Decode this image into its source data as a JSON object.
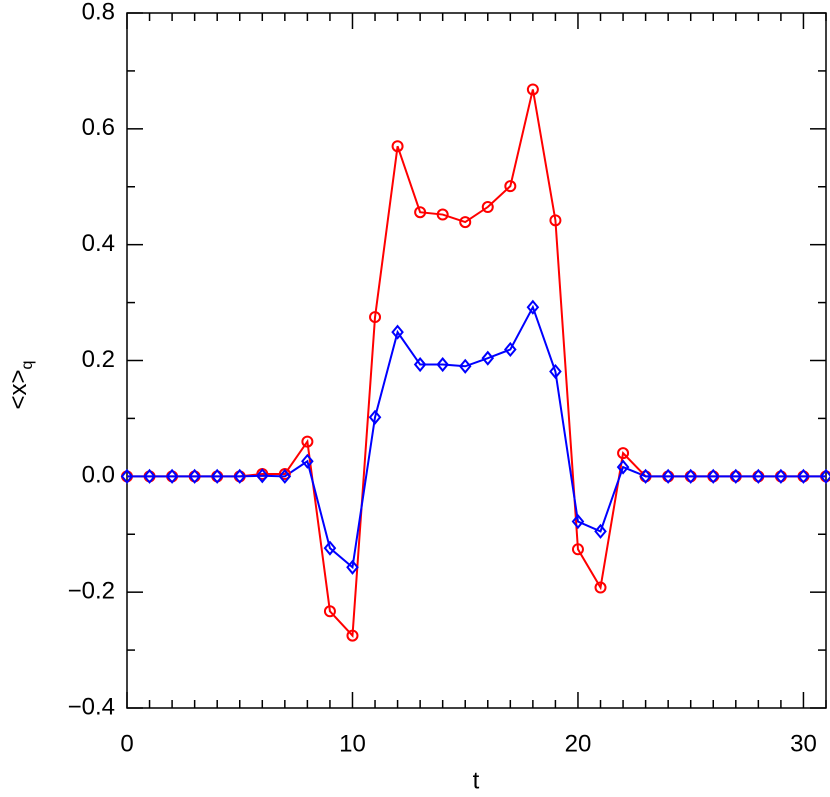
{
  "chart_data": {
    "type": "line",
    "xlabel": "t",
    "ylabel": "<x>",
    "ylabel_subscript": "q",
    "x": [
      0,
      1,
      2,
      3,
      4,
      5,
      6,
      7,
      8,
      9,
      10,
      11,
      12,
      13,
      14,
      15,
      16,
      17,
      18,
      19,
      20,
      21,
      22,
      23,
      24,
      25,
      26,
      27,
      28,
      29,
      30,
      31
    ],
    "series": [
      {
        "color": "#ff0000",
        "marker": "circle",
        "values": [
          0,
          0,
          0,
          0,
          0,
          0,
          0.004,
          0.004,
          0.06,
          -0.233,
          -0.275,
          0.275,
          0.57,
          0.456,
          0.452,
          0.439,
          0.465,
          0.501,
          0.668,
          0.442,
          -0.126,
          -0.192,
          0.04,
          0,
          0,
          0,
          0,
          0,
          0,
          0,
          0,
          0
        ]
      },
      {
        "color": "#0000ff",
        "marker": "diamond",
        "values": [
          0,
          0,
          0,
          0,
          0,
          0,
          0.001,
          0,
          0.026,
          -0.124,
          -0.157,
          0.102,
          0.249,
          0.193,
          0.193,
          0.19,
          0.204,
          0.219,
          0.292,
          0.181,
          -0.078,
          -0.095,
          0.016,
          0,
          0,
          0,
          0,
          0,
          0,
          0,
          0,
          0
        ]
      }
    ],
    "xlim": [
      0,
      31
    ],
    "ylim": [
      -0.4,
      0.8
    ],
    "xticks": [
      0,
      10,
      20,
      30
    ],
    "yticks": [
      {
        "value": -0.4,
        "label": "−0.4"
      },
      {
        "value": -0.2,
        "label": "−0.2"
      },
      {
        "value": 0,
        "label": "0.0"
      },
      0.2,
      0.4,
      0.6,
      0.8
    ],
    "xminor_ticks": [
      1,
      2,
      3,
      4,
      5,
      6,
      7,
      8,
      9,
      11,
      12,
      13,
      14,
      15,
      16,
      17,
      18,
      19,
      21,
      22,
      23,
      24,
      25,
      26,
      27,
      28,
      29,
      31
    ],
    "yminor_ticks": [
      -0.3,
      -0.1,
      0.1,
      0.3,
      0.5,
      0.7
    ]
  }
}
